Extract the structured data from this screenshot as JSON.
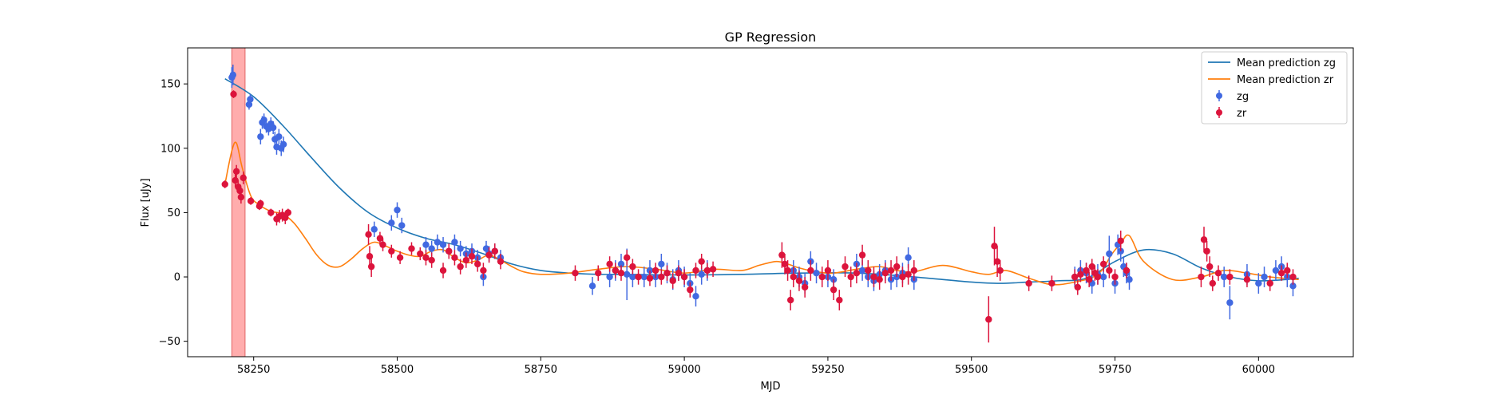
{
  "chart_data": {
    "type": "scatter",
    "title": "GP Regression",
    "xlabel": "MJD",
    "ylabel": "Flux [uJy]",
    "xlim": [
      58135,
      60165
    ],
    "ylim": [
      -62,
      178
    ],
    "xticks": [
      58250,
      58500,
      58750,
      59000,
      59250,
      59500,
      59750,
      60000
    ],
    "yticks": [
      -50,
      0,
      50,
      100,
      150
    ],
    "grid": false,
    "legend_position": "top-right",
    "highlight_band": {
      "x": [
        58212,
        58235
      ],
      "color": "#ff9999"
    },
    "series": [
      {
        "name": "Mean prediction zg",
        "kind": "line",
        "color": "#1f77b4",
        "x": [
          58200,
          58250,
          58300,
          58350,
          58400,
          58450,
          58500,
          58550,
          58600,
          58650,
          58700,
          58750,
          58800,
          58850,
          58900,
          59000,
          59100,
          59200,
          59300,
          59400,
          59500,
          59550,
          59600,
          59650,
          59700,
          59750,
          59800,
          59850,
          59900,
          59950,
          60000,
          60050,
          60070
        ],
        "y": [
          154,
          140,
          118,
          93,
          69,
          50,
          38,
          30,
          25,
          18,
          10,
          5,
          3,
          2,
          2,
          1.5,
          2,
          3,
          3,
          0,
          -4,
          -5,
          -4,
          -3,
          -1,
          12,
          21,
          18,
          7,
          0,
          -3,
          -2,
          -1
        ]
      },
      {
        "name": "Mean prediction zr",
        "kind": "line",
        "color": "#ff7f0e",
        "x": [
          58200,
          58212,
          58220,
          58230,
          58245,
          58260,
          58280,
          58300,
          58320,
          58340,
          58360,
          58380,
          58400,
          58420,
          58440,
          58460,
          58480,
          58500,
          58520,
          58540,
          58560,
          58580,
          58600,
          58620,
          58640,
          58660,
          58680,
          58700,
          58720,
          58750,
          58800,
          58850,
          58900,
          58950,
          59000,
          59050,
          59100,
          59130,
          59160,
          59180,
          59200,
          59230,
          59260,
          59300,
          59340,
          59370,
          59400,
          59450,
          59500,
          59530,
          59560,
          59600,
          59640,
          59680,
          59720,
          59745,
          59760,
          59775,
          59800,
          59850,
          59900,
          59940,
          59980,
          60020,
          60070
        ],
        "y": [
          72,
          98,
          104,
          85,
          63,
          56,
          51,
          49,
          42,
          30,
          17,
          9,
          8,
          14,
          22,
          27,
          24,
          20,
          17,
          16,
          20,
          21,
          15,
          11,
          13,
          17,
          13,
          8,
          4,
          2,
          3,
          6,
          8,
          6,
          3,
          6,
          5,
          9,
          12,
          10,
          7,
          4,
          3,
          6,
          8,
          5,
          4,
          9,
          4,
          2,
          5,
          -1,
          -6,
          -4,
          2,
          18,
          26,
          32,
          12,
          -2,
          0,
          5,
          3,
          0,
          -2
        ]
      },
      {
        "name": "zg",
        "kind": "errorbar",
        "color": "#4169e1",
        "x": [
          58212,
          58214,
          58242,
          58244,
          58262,
          58265,
          58268,
          58272,
          58276,
          58280,
          58284,
          58287,
          58290,
          58294,
          58298,
          58302,
          58460,
          58490,
          58500,
          58508,
          58550,
          58560,
          58570,
          58580,
          58590,
          58600,
          58610,
          58620,
          58630,
          58640,
          58650,
          58655,
          58660,
          58670,
          58680,
          58840,
          58870,
          58880,
          58890,
          58900,
          58910,
          58930,
          58940,
          58950,
          58960,
          58970,
          58980,
          58990,
          59000,
          59010,
          59020,
          59030,
          59040,
          59190,
          59200,
          59210,
          59220,
          59230,
          59250,
          59260,
          59300,
          59310,
          59320,
          59330,
          59340,
          59350,
          59360,
          59370,
          59380,
          59390,
          59400,
          59680,
          59690,
          59700,
          59710,
          59720,
          59730,
          59740,
          59750,
          59755,
          59760,
          59765,
          59770,
          59775,
          59940,
          59950,
          59980,
          60000,
          60010,
          60030,
          60040,
          60050,
          60060
        ],
        "y": [
          155,
          157,
          134,
          138,
          109,
          120,
          122,
          117,
          115,
          119,
          116,
          107,
          101,
          109,
          100,
          103,
          37,
          42,
          52,
          40,
          25,
          22,
          27,
          25,
          20,
          27,
          22,
          18,
          20,
          15,
          0,
          22,
          18,
          20,
          15,
          -7,
          0,
          5,
          10,
          2,
          0,
          0,
          5,
          0,
          10,
          3,
          -2,
          5,
          0,
          -5,
          -15,
          2,
          5,
          5,
          0,
          -5,
          12,
          3,
          0,
          -2,
          10,
          5,
          0,
          -3,
          2,
          5,
          -2,
          0,
          3,
          15,
          -2,
          0,
          5,
          3,
          -5,
          2,
          0,
          18,
          -5,
          25,
          20,
          8,
          3,
          -2,
          0,
          -20,
          2,
          -5,
          0,
          5,
          8,
          0,
          -7
        ],
        "yerr": [
          8,
          8,
          4,
          4,
          6,
          5,
          5,
          5,
          5,
          5,
          5,
          6,
          6,
          6,
          6,
          6,
          6,
          6,
          6,
          6,
          6,
          6,
          6,
          6,
          6,
          6,
          6,
          6,
          6,
          6,
          7,
          6,
          6,
          6,
          6,
          7,
          8,
          8,
          8,
          20,
          8,
          8,
          8,
          8,
          8,
          8,
          8,
          8,
          8,
          8,
          8,
          8,
          8,
          8,
          8,
          8,
          8,
          8,
          8,
          8,
          8,
          8,
          8,
          8,
          8,
          8,
          8,
          8,
          8,
          8,
          8,
          8,
          8,
          8,
          8,
          8,
          8,
          14,
          8,
          8,
          8,
          8,
          8,
          8,
          8,
          13,
          8,
          8,
          8,
          8,
          8,
          8,
          8
        ]
      },
      {
        "name": "zr",
        "kind": "errorbar",
        "color": "#dc143c",
        "x": [
          58200,
          58215,
          58218,
          58220,
          58223,
          58226,
          58228,
          58232,
          58245,
          58260,
          58262,
          58280,
          58290,
          58295,
          58300,
          58305,
          58310,
          58450,
          58452,
          58455,
          58470,
          58475,
          58490,
          58505,
          58525,
          58540,
          58550,
          58560,
          58580,
          58590,
          58600,
          58610,
          58620,
          58630,
          58640,
          58650,
          58660,
          58670,
          58680,
          58810,
          58850,
          58870,
          58880,
          58890,
          58900,
          58910,
          58920,
          58940,
          58950,
          58960,
          58970,
          58980,
          58990,
          59000,
          59010,
          59020,
          59030,
          59040,
          59050,
          59170,
          59175,
          59180,
          59185,
          59190,
          59200,
          59210,
          59220,
          59240,
          59250,
          59260,
          59270,
          59280,
          59290,
          59300,
          59310,
          59320,
          59330,
          59340,
          59350,
          59360,
          59370,
          59380,
          59390,
          59400,
          59530,
          59540,
          59545,
          59550,
          59600,
          59640,
          59680,
          59685,
          59690,
          59700,
          59705,
          59710,
          59715,
          59720,
          59730,
          59740,
          59750,
          59760,
          59770,
          59900,
          59905,
          59910,
          59915,
          59920,
          59930,
          59950,
          59980,
          60020,
          60040,
          60050,
          60060
        ],
        "y": [
          72,
          142,
          75,
          82,
          70,
          67,
          62,
          77,
          59,
          55,
          57,
          50,
          45,
          47,
          48,
          46,
          50,
          33,
          16,
          8,
          30,
          25,
          20,
          15,
          22,
          18,
          15,
          13,
          5,
          20,
          15,
          8,
          13,
          16,
          10,
          5,
          17,
          20,
          12,
          3,
          3,
          10,
          5,
          3,
          15,
          8,
          0,
          -1,
          5,
          0,
          3,
          -3,
          3,
          0,
          -10,
          5,
          12,
          5,
          6,
          17,
          10,
          5,
          -18,
          0,
          -3,
          -8,
          5,
          0,
          5,
          -10,
          -18,
          8,
          0,
          3,
          17,
          5,
          0,
          -2,
          3,
          5,
          8,
          0,
          2,
          5,
          -33,
          24,
          12,
          5,
          -5,
          -5,
          0,
          -8,
          2,
          5,
          -2,
          8,
          3,
          0,
          10,
          5,
          0,
          28,
          5,
          0,
          29,
          20,
          8,
          -5,
          3,
          0,
          -2,
          -5,
          3,
          5,
          0
        ],
        "yerr": [
          3,
          3,
          5,
          5,
          5,
          5,
          5,
          5,
          3,
          3,
          3,
          3,
          5,
          5,
          5,
          5,
          3,
          8,
          8,
          8,
          5,
          5,
          5,
          5,
          5,
          5,
          6,
          6,
          6,
          6,
          6,
          6,
          6,
          6,
          6,
          6,
          6,
          6,
          6,
          6,
          6,
          6,
          6,
          6,
          6,
          6,
          6,
          6,
          6,
          6,
          6,
          6,
          6,
          6,
          6,
          6,
          6,
          6,
          6,
          10,
          8,
          8,
          8,
          8,
          8,
          8,
          8,
          8,
          8,
          8,
          8,
          8,
          8,
          8,
          8,
          8,
          8,
          8,
          8,
          8,
          8,
          8,
          8,
          8,
          18,
          15,
          12,
          8,
          6,
          6,
          6,
          6,
          6,
          6,
          6,
          6,
          6,
          6,
          6,
          6,
          6,
          8,
          6,
          8,
          10,
          8,
          8,
          6,
          6,
          6,
          6,
          6,
          6,
          6,
          6
        ]
      }
    ]
  }
}
